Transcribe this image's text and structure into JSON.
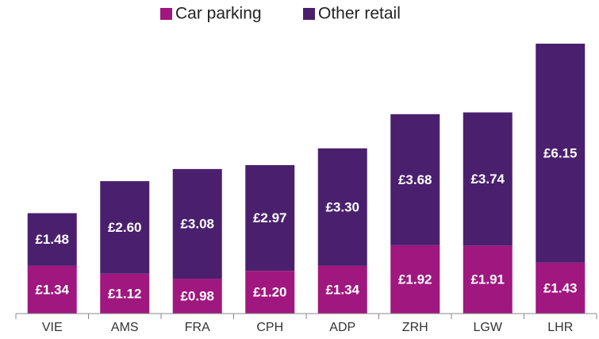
{
  "chart_data": {
    "type": "bar",
    "stacked": true,
    "categories": [
      "VIE",
      "AMS",
      "FRA",
      "CPH",
      "ADP",
      "ZRH",
      "LGW",
      "LHR"
    ],
    "series": [
      {
        "name": "Car parking",
        "color": "#a0177f",
        "values": [
          1.34,
          1.12,
          0.98,
          1.2,
          1.34,
          1.92,
          1.91,
          1.43
        ],
        "value_labels": [
          "£1.34",
          "£1.12",
          "£0.98",
          "£1.20",
          "£1.34",
          "£1.92",
          "£1.91",
          "£1.43"
        ]
      },
      {
        "name": "Other retail",
        "color": "#4a206e",
        "values": [
          1.48,
          2.6,
          3.08,
          2.97,
          3.3,
          3.68,
          3.74,
          6.15
        ],
        "value_labels": [
          "£1.48",
          "£2.60",
          "£3.08",
          "£2.97",
          "£3.30",
          "£3.68",
          "£3.74",
          "£6.15"
        ]
      }
    ],
    "legend": "top"
  }
}
